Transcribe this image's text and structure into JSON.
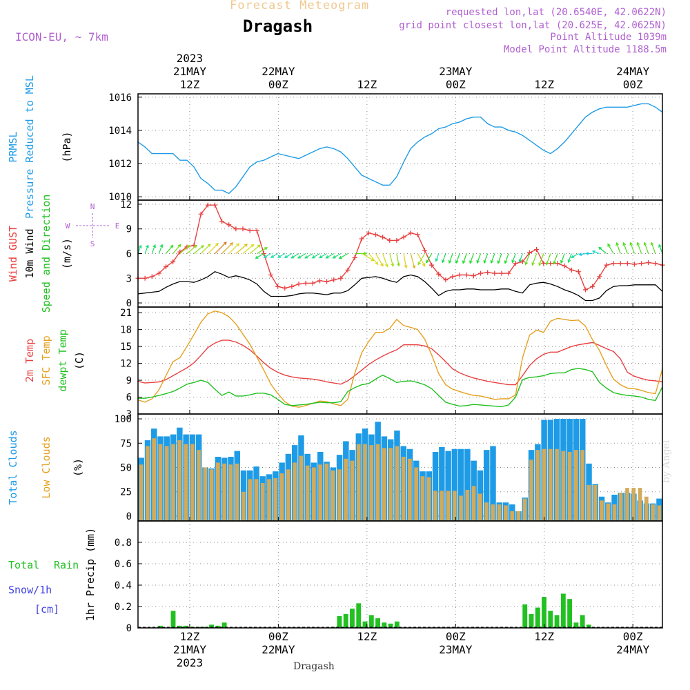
{
  "header": {
    "title": "Forecast Meteogram",
    "location": "Dragash",
    "model": "ICON-EU, ~ 7km",
    "requested": "requested lon,lat (20.6540E, 42.0622N)",
    "gridpoint": "grid point closest lon,lat (20.625E, 42.0625N)",
    "point_altitude": "Point Altitude 1039m",
    "model_altitude": "Model Point Altitude 1188.5m",
    "footer_location": "Dragash",
    "credit": "by Angel"
  },
  "colors": {
    "pressure": "#1e9be6",
    "gust": "#e84040",
    "wind": "#000000",
    "temp": "#e84040",
    "sfc": "#e6a020",
    "dewpt": "#20c020",
    "total_cloud": "#1e9be6",
    "low_cloud": "#d2aa5a",
    "rain": "#22c022",
    "snow": "#4040e0",
    "header_title": "#f0c890",
    "header_info": "#b060d0",
    "grid": "#888888"
  },
  "time_axis": {
    "top": [
      {
        "t": 12,
        "lines": [
          "2023",
          "21MAY",
          "12Z"
        ]
      },
      {
        "t": 24,
        "lines": [
          "22MAY",
          "00Z"
        ]
      },
      {
        "t": 36,
        "lines": [
          "12Z"
        ]
      },
      {
        "t": 48,
        "lines": [
          "23MAY",
          "00Z"
        ]
      },
      {
        "t": 60,
        "lines": [
          "12Z"
        ]
      },
      {
        "t": 72,
        "lines": [
          "24MAY",
          "00Z"
        ]
      }
    ],
    "bottom": [
      {
        "t": 12,
        "lines": [
          "12Z",
          "21MAY",
          "2023"
        ]
      },
      {
        "t": 24,
        "lines": [
          "00Z",
          "22MAY"
        ]
      },
      {
        "t": 36,
        "lines": [
          "12Z"
        ]
      },
      {
        "t": 48,
        "lines": [
          "00Z",
          "23MAY"
        ]
      },
      {
        "t": 60,
        "lines": [
          "12Z"
        ]
      },
      {
        "t": 72,
        "lines": [
          "00Z",
          "24MAY"
        ]
      }
    ]
  },
  "chart_data": [
    {
      "type": "line",
      "ylabel_lines": [
        {
          "text": "PRMSL",
          "color": "#1e9be6"
        },
        {
          "text": "Pressure Reduced to MSL",
          "color": "#1e9be6"
        },
        {
          "text": "(hPa)",
          "color": "#000000"
        }
      ],
      "ylim": [
        1009.8,
        1016.2
      ],
      "yticks": [
        1010,
        1012,
        1014,
        1016
      ],
      "series": [
        {
          "values": [
            1013.3,
            1013.0,
            1012.6,
            1012.6,
            1012.6,
            1012.6,
            1012.2,
            1012.2,
            1011.8,
            1011.1,
            1010.8,
            1010.4,
            1010.4,
            1010.2,
            1010.6,
            1011.2,
            1011.8,
            1012.1,
            1012.2,
            1012.4,
            1012.6,
            1012.5,
            1012.4,
            1012.3,
            1012.5,
            1012.7,
            1012.9,
            1013.0,
            1012.9,
            1012.7,
            1012.3,
            1011.8,
            1011.3,
            1011.1,
            1010.9,
            1010.7,
            1010.7,
            1011.2,
            1012.1,
            1012.9,
            1013.3,
            1013.6,
            1013.8,
            1014.1,
            1014.2,
            1014.4,
            1014.5,
            1014.7,
            1014.8,
            1014.8,
            1014.4,
            1014.2,
            1014.2,
            1014.0,
            1013.9,
            1013.7,
            1013.4,
            1013.1,
            1012.8,
            1012.6,
            1012.9,
            1013.3,
            1013.8,
            1014.3,
            1014.8,
            1015.1,
            1015.3,
            1015.4,
            1015.4,
            1015.4,
            1015.4,
            1015.5,
            1015.6,
            1015.6,
            1015.4,
            1015.1
          ]
        }
      ]
    },
    {
      "type": "line",
      "ylabel_lines": [
        {
          "text": "Wind GUST",
          "color": "#e84040"
        },
        {
          "text": "10m Wind",
          "color": "#000000"
        },
        {
          "text": "Speed and Direction",
          "color": "#20c020"
        },
        {
          "text": "(m/s)",
          "color": "#000000"
        }
      ],
      "compass": {
        "n": "N",
        "s": "S",
        "w": "W",
        "e": "E"
      },
      "ylim": [
        -0.5,
        12.5
      ],
      "yticks": [
        0,
        3,
        6,
        9,
        12
      ],
      "series": [
        {
          "values": [
            3.0,
            3.0,
            3.2,
            3.6,
            4.4,
            5.0,
            6.2,
            6.8,
            7.0,
            10.8,
            11.9,
            11.9,
            9.9,
            9.5,
            9.0,
            9.0,
            8.8,
            8.8,
            6.0,
            3.4,
            2.0,
            1.8,
            2.0,
            2.3,
            2.4,
            2.4,
            2.7,
            2.6,
            2.8,
            3.0,
            4.0,
            5.5,
            7.8,
            8.5,
            8.3,
            8.0,
            7.6,
            7.6,
            8.0,
            8.5,
            8.3,
            6.4,
            4.6,
            3.5,
            2.8,
            3.2,
            3.4,
            3.4,
            3.3,
            3.6,
            3.7,
            3.6,
            3.6,
            3.6,
            4.8,
            5.0,
            6.1,
            6.5,
            4.8,
            4.8,
            4.8,
            4.5,
            4.0,
            3.8,
            1.6,
            2.0,
            3.2,
            4.6,
            4.8,
            4.8,
            4.8,
            4.7,
            4.8,
            4.9,
            4.8,
            4.6
          ]
        },
        {
          "values": [
            1.1,
            1.2,
            1.3,
            1.4,
            1.9,
            2.3,
            2.6,
            2.6,
            2.5,
            2.8,
            3.2,
            3.8,
            3.5,
            3.1,
            3.3,
            3.1,
            2.8,
            2.3,
            1.4,
            0.8,
            0.8,
            0.8,
            0.9,
            1.1,
            1.2,
            1.2,
            1.1,
            1.0,
            1.2,
            1.2,
            1.5,
            2.2,
            3.0,
            3.1,
            3.2,
            3.0,
            2.7,
            2.5,
            3.2,
            3.4,
            3.2,
            2.6,
            1.8,
            0.9,
            1.4,
            1.6,
            1.6,
            1.7,
            1.7,
            1.6,
            1.6,
            1.6,
            1.7,
            1.7,
            1.4,
            1.2,
            2.2,
            2.4,
            2.5,
            2.3,
            2.0,
            1.6,
            1.3,
            0.9,
            0.3,
            0.3,
            0.6,
            1.5,
            2.0,
            2.1,
            2.1,
            2.2,
            2.2,
            2.2,
            2.2,
            1.4
          ]
        }
      ],
      "directions": [
        200,
        200,
        200,
        200,
        220,
        220,
        230,
        230,
        230,
        225,
        225,
        225,
        225,
        225,
        230,
        230,
        230,
        240,
        60,
        60,
        60,
        60,
        60,
        60,
        60,
        60,
        60,
        60,
        60,
        60,
        60,
        270,
        300,
        320,
        330,
        340,
        345,
        350,
        350,
        345,
        330,
        30,
        30,
        20,
        20,
        20,
        20,
        20,
        20,
        20,
        20,
        20,
        20,
        20,
        20,
        20,
        20,
        20,
        20,
        20,
        20,
        20,
        20,
        60,
        80,
        90,
        110,
        130,
        150,
        160,
        160,
        160,
        160,
        160,
        160,
        160
      ]
    },
    {
      "type": "line",
      "ylabel_lines": [
        {
          "text": "2m Temp",
          "color": "#e84040"
        },
        {
          "text": "SFC Temp",
          "color": "#e6a020"
        },
        {
          "text": "dewpt Temp",
          "color": "#20c020"
        },
        {
          "text": "(C)",
          "color": "#000000"
        }
      ],
      "ylim": [
        3,
        22
      ],
      "yticks": [
        3,
        6,
        9,
        12,
        15,
        18,
        21
      ],
      "series": [
        {
          "values": [
            8.8,
            8.5,
            8.6,
            8.7,
            9.1,
            9.8,
            10.5,
            11.2,
            12.1,
            13.4,
            14.8,
            15.6,
            16.1,
            16.1,
            15.8,
            15.2,
            14.4,
            13.3,
            12.1,
            11.1,
            10.4,
            9.9,
            9.6,
            9.4,
            9.3,
            9.2,
            9.0,
            8.7,
            8.5,
            8.3,
            8.9,
            9.8,
            10.8,
            11.8,
            12.6,
            13.3,
            13.9,
            14.4,
            15.3,
            15.3,
            15.3,
            15.1,
            14.6,
            13.5,
            12.3,
            11.0,
            10.3,
            9.8,
            9.4,
            9.1,
            8.8,
            8.6,
            8.4,
            8.2,
            8.2,
            9.8,
            11.6,
            12.8,
            13.6,
            14.0,
            14.0,
            14.5,
            15.0,
            15.3,
            15.5,
            15.7,
            15.2,
            14.6,
            14.1,
            12.8,
            10.4,
            9.7,
            9.3,
            9.0,
            8.9,
            8.7
          ]
        },
        {
          "values": [
            5.5,
            5.1,
            5.7,
            7.3,
            9.8,
            12.3,
            13.0,
            15.0,
            17.1,
            19.3,
            20.8,
            21.3,
            21.0,
            20.3,
            19.0,
            17.2,
            15.4,
            13.1,
            10.8,
            8.3,
            6.6,
            5.2,
            4.4,
            4.2,
            4.5,
            4.9,
            5.3,
            5.2,
            4.8,
            4.5,
            5.6,
            10.2,
            13.9,
            15.9,
            17.5,
            17.5,
            18.2,
            19.8,
            18.7,
            18.4,
            18.0,
            16.3,
            13.5,
            10.2,
            8.2,
            7.4,
            7.0,
            6.6,
            6.3,
            6.2,
            5.9,
            5.6,
            5.7,
            5.7,
            6.4,
            13.0,
            17.0,
            17.9,
            17.5,
            19.5,
            20.0,
            19.8,
            19.6,
            19.7,
            18.6,
            16.2,
            14.3,
            11.6,
            9.2,
            8.2,
            7.6,
            7.5,
            7.2,
            6.8,
            6.6,
            11.0
          ]
        },
        {
          "values": [
            5.8,
            5.8,
            6.0,
            6.3,
            6.6,
            7.0,
            7.6,
            8.3,
            8.6,
            9.0,
            8.6,
            7.4,
            6.3,
            6.9,
            6.2,
            6.2,
            6.4,
            6.7,
            6.7,
            6.4,
            5.6,
            4.7,
            4.5,
            4.6,
            4.7,
            4.9,
            5.1,
            5.0,
            5.0,
            5.2,
            7.0,
            7.7,
            8.2,
            8.4,
            9.2,
            9.9,
            9.3,
            8.6,
            8.8,
            8.9,
            8.6,
            8.2,
            7.5,
            6.3,
            5.1,
            4.7,
            4.4,
            4.5,
            4.7,
            4.6,
            4.5,
            4.4,
            4.3,
            4.6,
            6.0,
            9.1,
            9.5,
            9.6,
            9.8,
            10.2,
            10.3,
            10.3,
            10.9,
            11.1,
            10.9,
            10.5,
            8.6,
            7.6,
            6.8,
            6.5,
            6.3,
            6.2,
            6.0,
            5.6,
            5.4,
            7.8
          ]
        }
      ]
    },
    {
      "type": "bar",
      "ylabel_lines": [
        {
          "text": "Total Clouds",
          "color": "#1e9be6"
        },
        {
          "text": "Low Clouds",
          "color": "#e6a020"
        },
        {
          "text": "(%)",
          "color": "#000000"
        }
      ],
      "ylim": [
        -5,
        105
      ],
      "yticks": [
        0,
        25,
        50,
        75,
        100
      ],
      "series": [
        {
          "values": [
            60,
            78,
            90,
            82,
            82,
            84,
            91,
            84,
            84,
            84,
            50,
            49,
            61,
            60,
            61,
            67,
            47,
            47,
            51,
            41,
            43,
            46,
            55,
            64,
            73,
            83,
            64,
            55,
            66,
            56,
            50,
            63,
            77,
            68,
            85,
            90,
            84,
            97,
            82,
            79,
            88,
            72,
            69,
            57,
            46,
            46,
            66,
            71,
            67,
            69,
            69,
            69,
            57,
            47,
            68,
            72,
            14,
            14,
            12,
            5,
            19,
            68,
            74,
            99,
            99,
            100,
            100,
            100,
            100,
            100,
            54,
            33,
            20,
            14,
            22,
            24,
            24,
            23,
            16,
            13,
            13,
            18
          ]
        },
        {
          "values": [
            53,
            72,
            80,
            74,
            72,
            74,
            78,
            74,
            74,
            68,
            50,
            48,
            55,
            54,
            53,
            54,
            25,
            38,
            38,
            34,
            38,
            39,
            44,
            48,
            55,
            62,
            52,
            50,
            53,
            54,
            47,
            48,
            59,
            57,
            74,
            74,
            73,
            74,
            70,
            70,
            72,
            61,
            59,
            50,
            41,
            40,
            26,
            26,
            26,
            26,
            21,
            27,
            31,
            23,
            14,
            12,
            12,
            11,
            5,
            5,
            18,
            58,
            68,
            69,
            69,
            69,
            67,
            66,
            68,
            68,
            32,
            32,
            16,
            13,
            12,
            24,
            29,
            29,
            29,
            20,
            12,
            11
          ]
        }
      ]
    },
    {
      "type": "bar",
      "ylabel_lines": [
        {
          "text": "1hr Precip (mm)",
          "color": "#000000"
        }
      ],
      "legend": {
        "total": "Total",
        "rain": "Rain",
        "snow": "Snow/1h",
        "unit": "[cm]"
      },
      "ylim": [
        0,
        1.0
      ],
      "yticks": [
        0,
        0.2,
        0.4,
        0.6,
        0.8
      ],
      "ytick_labels": [
        "0",
        "0.2",
        "0.4",
        "0.6",
        "0.8"
      ],
      "series": [
        {
          "values": [
            0,
            0,
            0,
            0.02,
            0,
            0.16,
            0.02,
            0.02,
            0.01,
            0.01,
            0.01,
            0.03,
            0.02,
            0.05,
            0,
            0,
            0,
            0,
            0,
            0,
            0,
            0,
            0,
            0,
            0,
            0,
            0,
            0,
            0,
            0,
            0.01,
            0.11,
            0.13,
            0.18,
            0.23,
            0.06,
            0.12,
            0.09,
            0.05,
            0.04,
            0.06,
            0,
            0,
            0,
            0,
            0,
            0,
            0,
            0,
            0,
            0,
            0,
            0,
            0,
            0,
            0,
            0,
            0,
            0,
            0,
            0.22,
            0.13,
            0.19,
            0.29,
            0.16,
            0.12,
            0.32,
            0.27,
            0.05,
            0.12,
            0.03,
            0,
            0,
            0,
            0,
            0,
            0,
            0,
            0,
            0,
            0,
            0
          ]
        }
      ]
    }
  ]
}
